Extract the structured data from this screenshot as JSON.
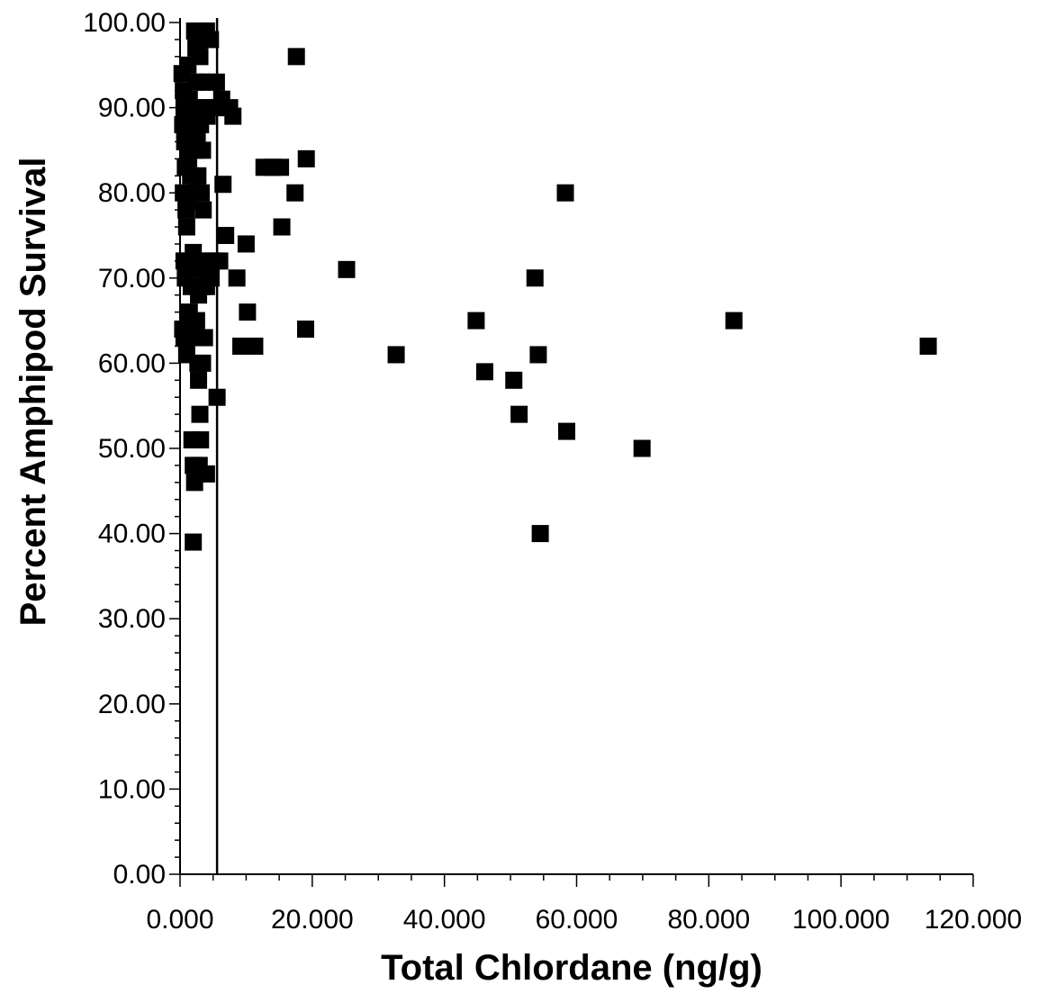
{
  "chart_data": {
    "type": "scatter",
    "xlabel": "Total Chlordane (ng/g)",
    "ylabel": "Percent Amphipod Survival",
    "xlim": [
      0,
      120
    ],
    "ylim": [
      0,
      100
    ],
    "x_tick_values": [
      0,
      20,
      40,
      60,
      80,
      100,
      120
    ],
    "x_tick_labels": [
      "0.000",
      "20.000",
      "40.000",
      "60.000",
      "80.000",
      "100.000",
      "120.000"
    ],
    "y_tick_values": [
      0,
      10,
      20,
      30,
      40,
      50,
      60,
      70,
      80,
      90,
      100
    ],
    "y_tick_labels": [
      "0.00",
      "10.00",
      "20.00",
      "30.00",
      "40.00",
      "50.00",
      "60.00",
      "70.00",
      "80.00",
      "90.00",
      "100.00"
    ],
    "reference_line_x": 5.6,
    "marker_color": "#000000",
    "points": [
      {
        "x": 0.3,
        "y": 94
      },
      {
        "x": 0.5,
        "y": 92
      },
      {
        "x": 0.6,
        "y": 90
      },
      {
        "x": 0.4,
        "y": 88
      },
      {
        "x": 0.7,
        "y": 86
      },
      {
        "x": 0.8,
        "y": 83
      },
      {
        "x": 0.5,
        "y": 80
      },
      {
        "x": 0.9,
        "y": 78
      },
      {
        "x": 1.0,
        "y": 76
      },
      {
        "x": 0.6,
        "y": 72
      },
      {
        "x": 0.8,
        "y": 70
      },
      {
        "x": 0.4,
        "y": 64
      },
      {
        "x": 0.6,
        "y": 63
      },
      {
        "x": 1.0,
        "y": 61
      },
      {
        "x": 1.2,
        "y": 95
      },
      {
        "x": 1.4,
        "y": 91
      },
      {
        "x": 1.5,
        "y": 88
      },
      {
        "x": 1.3,
        "y": 84
      },
      {
        "x": 1.6,
        "y": 82
      },
      {
        "x": 1.2,
        "y": 79
      },
      {
        "x": 1.5,
        "y": 72
      },
      {
        "x": 1.7,
        "y": 69
      },
      {
        "x": 1.4,
        "y": 66
      },
      {
        "x": 1.8,
        "y": 64
      },
      {
        "x": 1.8,
        "y": 51
      },
      {
        "x": 2.0,
        "y": 48
      },
      {
        "x": 2.2,
        "y": 46
      },
      {
        "x": 2.0,
        "y": 39
      },
      {
        "x": 2.2,
        "y": 99
      },
      {
        "x": 2.4,
        "y": 97
      },
      {
        "x": 2.5,
        "y": 93
      },
      {
        "x": 2.3,
        "y": 90
      },
      {
        "x": 2.6,
        "y": 87
      },
      {
        "x": 2.2,
        "y": 85
      },
      {
        "x": 2.7,
        "y": 82
      },
      {
        "x": 2.4,
        "y": 80
      },
      {
        "x": 2.0,
        "y": 73
      },
      {
        "x": 2.5,
        "y": 71
      },
      {
        "x": 2.8,
        "y": 68
      },
      {
        "x": 2.5,
        "y": 65
      },
      {
        "x": 2.9,
        "y": 63
      },
      {
        "x": 2.7,
        "y": 60
      },
      {
        "x": 2.8,
        "y": 58
      },
      {
        "x": 3.0,
        "y": 54
      },
      {
        "x": 3.1,
        "y": 51
      },
      {
        "x": 2.9,
        "y": 48
      },
      {
        "x": 3.2,
        "y": 99
      },
      {
        "x": 3.0,
        "y": 96
      },
      {
        "x": 3.3,
        "y": 93
      },
      {
        "x": 3.5,
        "y": 90
      },
      {
        "x": 3.1,
        "y": 88
      },
      {
        "x": 3.4,
        "y": 85
      },
      {
        "x": 3.2,
        "y": 80
      },
      {
        "x": 3.5,
        "y": 78
      },
      {
        "x": 3.6,
        "y": 72
      },
      {
        "x": 3.3,
        "y": 69
      },
      {
        "x": 3.7,
        "y": 63
      },
      {
        "x": 3.4,
        "y": 60
      },
      {
        "x": 4.0,
        "y": 99
      },
      {
        "x": 4.2,
        "y": 93
      },
      {
        "x": 4.1,
        "y": 89
      },
      {
        "x": 4.3,
        "y": 71
      },
      {
        "x": 4.0,
        "y": 69
      },
      {
        "x": 4.0,
        "y": 47
      },
      {
        "x": 4.6,
        "y": 98
      },
      {
        "x": 4.8,
        "y": 90
      },
      {
        "x": 4.9,
        "y": 72
      },
      {
        "x": 4.7,
        "y": 70
      },
      {
        "x": 5.5,
        "y": 93
      },
      {
        "x": 5.8,
        "y": 90
      },
      {
        "x": 5.6,
        "y": 56
      },
      {
        "x": 6.0,
        "y": 72
      },
      {
        "x": 6.3,
        "y": 91
      },
      {
        "x": 6.5,
        "y": 81
      },
      {
        "x": 6.9,
        "y": 75
      },
      {
        "x": 7.5,
        "y": 90
      },
      {
        "x": 8.0,
        "y": 89
      },
      {
        "x": 8.6,
        "y": 70
      },
      {
        "x": 9.2,
        "y": 62
      },
      {
        "x": 10.0,
        "y": 74
      },
      {
        "x": 10.2,
        "y": 66
      },
      {
        "x": 11.3,
        "y": 62
      },
      {
        "x": 12.7,
        "y": 83
      },
      {
        "x": 14.0,
        "y": 83
      },
      {
        "x": 15.2,
        "y": 83
      },
      {
        "x": 15.4,
        "y": 76
      },
      {
        "x": 17.6,
        "y": 96
      },
      {
        "x": 17.4,
        "y": 80
      },
      {
        "x": 19.1,
        "y": 84
      },
      {
        "x": 19.0,
        "y": 64
      },
      {
        "x": 25.2,
        "y": 71
      },
      {
        "x": 32.7,
        "y": 61
      },
      {
        "x": 44.8,
        "y": 65
      },
      {
        "x": 46.1,
        "y": 59
      },
      {
        "x": 50.5,
        "y": 58
      },
      {
        "x": 51.3,
        "y": 54
      },
      {
        "x": 53.7,
        "y": 70
      },
      {
        "x": 54.2,
        "y": 61
      },
      {
        "x": 54.5,
        "y": 40
      },
      {
        "x": 58.3,
        "y": 80
      },
      {
        "x": 58.5,
        "y": 52
      },
      {
        "x": 69.9,
        "y": 50
      },
      {
        "x": 83.8,
        "y": 65
      },
      {
        "x": 113.2,
        "y": 62
      }
    ]
  }
}
